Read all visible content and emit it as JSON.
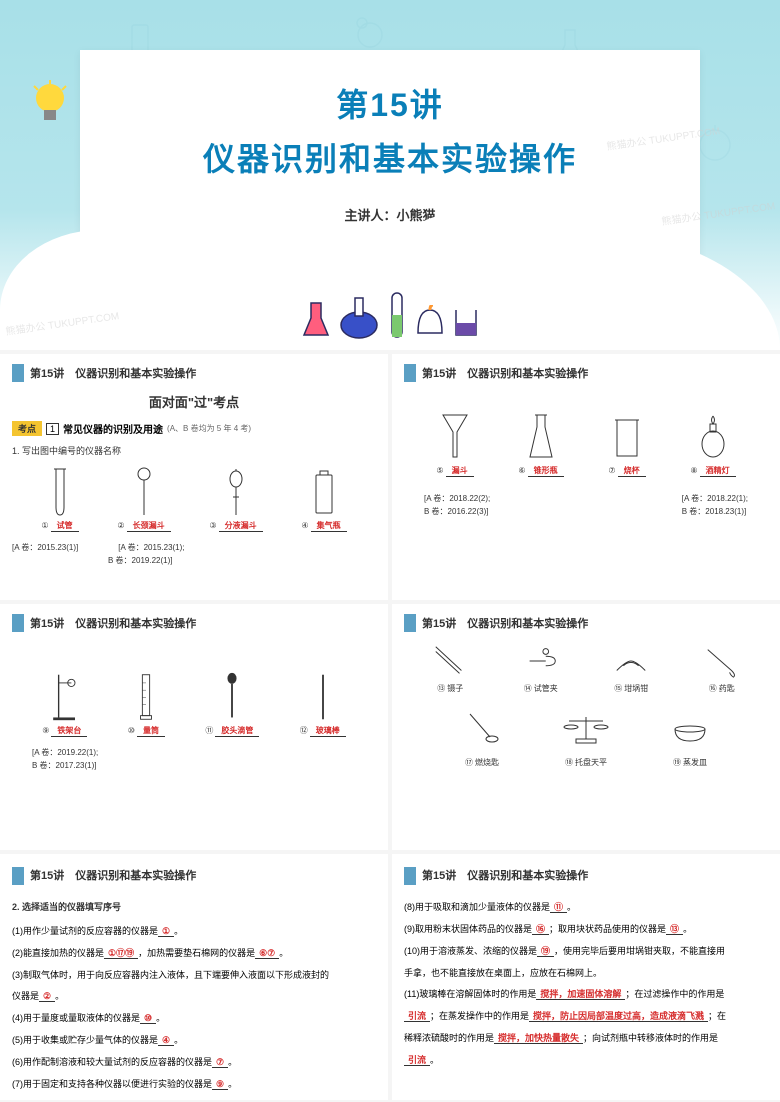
{
  "main": {
    "title_num": "第15讲",
    "title_text": "仪器识别和基本实验操作",
    "presenter_label": "主讲人：",
    "presenter_name": "小熊猫",
    "watermark": "熊猫办公 TUKUPPT.COM",
    "colors": {
      "accent": "#0a7fb8",
      "bg": "#a8e0e8"
    }
  },
  "header": "第15讲　仪器识别和基本实验操作",
  "slide1": {
    "center_title": "面对面\"过\"考点",
    "kaodian_badge": "考点",
    "kaodian_num": "1",
    "kaodian_text": "常见仪器的识别及用途",
    "kaodian_note": "(A、B 卷均为 5 年 4 考)",
    "q1": "1. 写出图中编号的仪器名称",
    "instruments": [
      {
        "num": "①",
        "name": "试管"
      },
      {
        "num": "②",
        "name": "长颈漏斗"
      },
      {
        "num": "③",
        "name": "分液漏斗"
      },
      {
        "num": "④",
        "name": "集气瓶"
      }
    ],
    "refs": "[A 卷：2015.23(1)]　　　　　[A 卷：2015.23(1);\n　　　　　　　　　　　　B 卷：2019.22(1)]"
  },
  "slide2": {
    "instruments": [
      {
        "num": "⑤",
        "name": "漏斗"
      },
      {
        "num": "⑥",
        "name": "锥形瓶"
      },
      {
        "num": "⑦",
        "name": "烧杯"
      },
      {
        "num": "⑧",
        "name": "酒精灯"
      }
    ],
    "refs1": "[A 卷：2018.22(2);\nB 卷：2016.22(3)]",
    "refs2": "[A 卷：2018.22(1);\nB 卷：2018.23(1)]"
  },
  "slide3": {
    "instruments": [
      {
        "num": "⑨",
        "name": "铁架台"
      },
      {
        "num": "⑩",
        "name": "量筒"
      },
      {
        "num": "⑪",
        "name": "胶头滴管"
      },
      {
        "num": "⑫",
        "name": "玻璃棒"
      }
    ],
    "refs": "[A 卷：2019.22(1);\nB 卷：2017.23(1)]"
  },
  "slide4": {
    "instruments_top": [
      {
        "num": "⑬",
        "name": "镊子"
      },
      {
        "num": "⑭",
        "name": "试管夹"
      },
      {
        "num": "⑮",
        "name": "坩埚钳"
      },
      {
        "num": "⑯",
        "name": "药匙"
      }
    ],
    "instruments_bot": [
      {
        "num": "⑰",
        "name": "燃烧匙"
      },
      {
        "num": "⑱",
        "name": "托盘天平"
      },
      {
        "num": "⑲",
        "name": "蒸发皿"
      }
    ]
  },
  "slide5": {
    "title": "2. 选择适当的仪器填写序号",
    "lines": [
      {
        "t": "(1)用作少量试剂的反应容器的仪器是",
        "a": "①",
        "suf": "。"
      },
      {
        "t": "(2)能直接加热的仪器是",
        "a": "①⑰⑲",
        "mid": "，加热需要垫石棉网的仪器是",
        "a2": "⑥⑦",
        "suf": "。"
      },
      {
        "t": "(3)制取气体时，用于向反应容器内注入液体，且下端要伸入液面以下形成液封的",
        "pre": "仪器是",
        "a": "②",
        "suf": "。"
      },
      {
        "t": "(4)用于量度或量取液体的仪器是",
        "a": "⑩",
        "suf": "。"
      },
      {
        "t": "(5)用于收集或贮存少量气体的仪器是",
        "a": "④",
        "suf": "。"
      },
      {
        "t": "(6)用作配制溶液和较大量试剂的反应容器的仪器是",
        "a": "⑦",
        "suf": "。"
      },
      {
        "t": "(7)用于固定和支持各种仪器以便进行实验的仪器是",
        "a": "⑨",
        "suf": "。"
      }
    ]
  },
  "slide6": {
    "lines": [
      {
        "t": "(8)用于吸取和滴加少量液体的仪器是",
        "a": "⑪",
        "suf": "。"
      },
      {
        "t": "(9)取用粉末状固体药品的仪器是",
        "a": "⑯",
        "mid": "；取用块状药品使用的仪器是",
        "a2": "⑬",
        "suf": "。"
      },
      {
        "t": "(10)用于溶液蒸发、浓缩的仪器是",
        "a": "⑲",
        "mid": "，使用完毕后要用坩埚钳夹取，不能直接用"
      },
      {
        "plain": "手拿，也不能直接放在桌面上，应放在石棉网上。"
      },
      {
        "t": "(11)玻璃棒在溶解固体时的作用是",
        "a": "搅拌，加速固体溶解",
        "mid": "；在过滤操作中的作用是"
      },
      {
        "a_only": "引流",
        "mid": "；在蒸发操作中的作用是",
        "a2": "搅拌，防止因局部温度过高，造成液滴飞溅",
        "suf": "；在"
      },
      {
        "plain2": "稀释浓硫酸时的作用是",
        "a": "搅拌，加快热量散失",
        "mid": "；向试剂瓶中转移液体时的作用是"
      },
      {
        "a_only": "引流",
        "suf": "。"
      }
    ]
  }
}
